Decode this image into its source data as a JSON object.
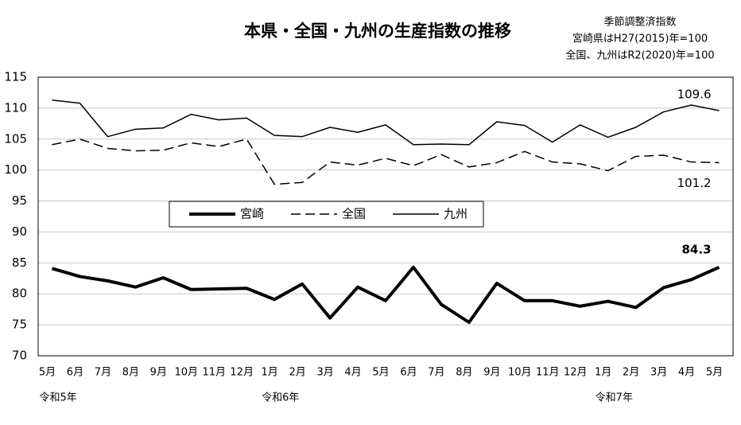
{
  "chart_data": {
    "type": "line",
    "title": "本県・全国・九州の生産指数の推移",
    "notes": [
      "季節調整済指数",
      "宮崎県はH27(2015)年=100",
      "全国、九州はR2(2020)年=100"
    ],
    "categories": [
      "5月",
      "6月",
      "7月",
      "8月",
      "9月",
      "10月",
      "11月",
      "12月",
      "1月",
      "2月",
      "3月",
      "4月",
      "5月",
      "6月",
      "7月",
      "8月",
      "9月",
      "10月",
      "11月",
      "12月",
      "1月",
      "2月",
      "3月",
      "4月",
      "5月"
    ],
    "x_groups": [
      "令和5年",
      null,
      null,
      null,
      null,
      null,
      null,
      null,
      "令和6年",
      null,
      null,
      null,
      null,
      null,
      null,
      null,
      null,
      null,
      null,
      null,
      "令和7年",
      null,
      null,
      null,
      null
    ],
    "series": [
      {
        "name": "宮崎",
        "color": "#000000",
        "width": 4,
        "dash": "none",
        "values": [
          84.1,
          82.8,
          82.1,
          81.1,
          82.6,
          80.7,
          80.8,
          80.9,
          79.1,
          81.6,
          76.1,
          81.1,
          78.9,
          84.3,
          78.3,
          75.4,
          81.7,
          78.9,
          78.9,
          78.0,
          78.8,
          77.8,
          81.0,
          82.3,
          84.3
        ]
      },
      {
        "name": "全国",
        "color": "#000000",
        "width": 1.5,
        "dash": "12 6",
        "values": [
          104.1,
          105.0,
          103.5,
          103.1,
          103.2,
          104.4,
          103.8,
          105.0,
          97.7,
          98.0,
          101.3,
          100.8,
          101.9,
          100.7,
          102.5,
          100.5,
          101.2,
          103.0,
          101.3,
          101.0,
          99.9,
          102.2,
          102.4,
          101.3,
          101.2
        ]
      },
      {
        "name": "九州",
        "color": "#000000",
        "width": 1.5,
        "dash": "none",
        "values": [
          111.3,
          110.8,
          105.4,
          106.6,
          106.8,
          109.0,
          108.1,
          108.4,
          105.6,
          105.4,
          106.9,
          106.1,
          107.3,
          104.1,
          104.2,
          104.1,
          107.8,
          107.2,
          104.5,
          107.3,
          105.3,
          106.9,
          109.4,
          110.5,
          109.6
        ]
      }
    ],
    "ylim": [
      70,
      115
    ],
    "yticks": [
      70,
      75,
      80,
      85,
      90,
      95,
      100,
      105,
      110,
      115
    ],
    "grid": true,
    "legend": "center-left"
  }
}
